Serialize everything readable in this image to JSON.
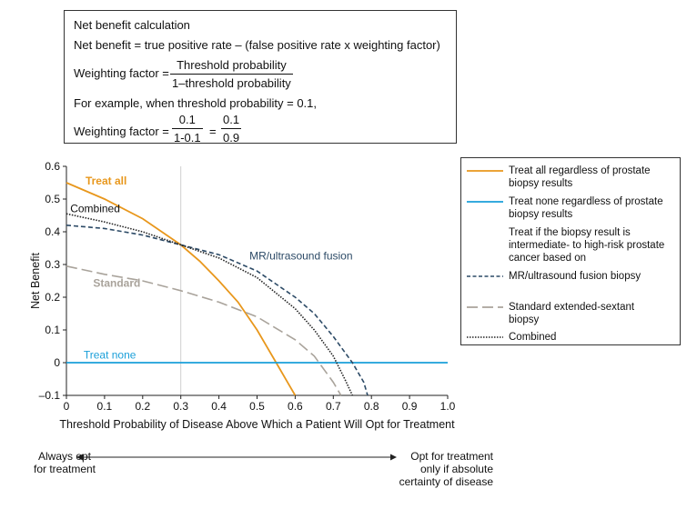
{
  "formula_box": {
    "line1": "Net benefit calculation",
    "line2": "Net benefit = true positive rate – (false positive rate x weighting factor)",
    "wf_label": "Weighting factor =",
    "wf_num": "Threshold probability",
    "wf_den": "1–threshold probability",
    "example": "For example, when threshold probability = 0.1,",
    "ex_label": "Weighting factor =",
    "ex_num1": "0.1",
    "ex_den1": "1-0.1",
    "ex_eq": "=",
    "ex_num2": "0.1",
    "ex_den2": "0.9"
  },
  "chart_data": {
    "type": "line",
    "xlabel": "Threshold Probability of Disease Above Which a Patient Will Opt for Treatment",
    "ylabel": "Net Benefit",
    "xlim": [
      0,
      1.0
    ],
    "ylim": [
      -0.1,
      0.6
    ],
    "x_ticks": [
      "0",
      "0.1",
      "0.2",
      "0.3",
      "0.4",
      "0.5",
      "0.6",
      "0.7",
      "0.8",
      "0.9",
      "1.0"
    ],
    "y_ticks": [
      "0.6",
      "0.5",
      "0.4",
      "0.3",
      "0.2",
      "0.1",
      "0",
      "–0.1"
    ],
    "grid": "vertical line at x = 0.3",
    "series": [
      {
        "name": "Treat all",
        "color": "#e8971c",
        "dash": "solid",
        "x": [
          0,
          0.1,
          0.2,
          0.3,
          0.35,
          0.4,
          0.45,
          0.5,
          0.55,
          0.58,
          0.6
        ],
        "y": [
          0.55,
          0.5,
          0.44,
          0.36,
          0.31,
          0.25,
          0.185,
          0.1,
          0.0,
          -0.06,
          -0.1
        ]
      },
      {
        "name": "Treat none",
        "color": "#1a9fd9",
        "dash": "solid",
        "x": [
          0,
          1.0
        ],
        "y": [
          0,
          0
        ]
      },
      {
        "name": "MR/ultrasound fusion",
        "color": "#2c4a66",
        "dash": "5,3",
        "x": [
          0,
          0.1,
          0.2,
          0.3,
          0.4,
          0.5,
          0.6,
          0.65,
          0.7,
          0.75,
          0.78,
          0.79
        ],
        "y": [
          0.42,
          0.41,
          0.39,
          0.36,
          0.33,
          0.28,
          0.2,
          0.15,
          0.08,
          0.0,
          -0.06,
          -0.1
        ]
      },
      {
        "name": "Standard",
        "color": "#a9a39b",
        "dash": "12,5",
        "x": [
          0,
          0.1,
          0.2,
          0.3,
          0.4,
          0.5,
          0.6,
          0.65,
          0.7,
          0.72
        ],
        "y": [
          0.295,
          0.27,
          0.25,
          0.22,
          0.185,
          0.14,
          0.07,
          0.02,
          -0.06,
          -0.1
        ]
      },
      {
        "name": "Combined",
        "color": "#222222",
        "dash": "1.5,1.5",
        "x": [
          0,
          0.1,
          0.2,
          0.3,
          0.4,
          0.5,
          0.6,
          0.65,
          0.7,
          0.73,
          0.75
        ],
        "y": [
          0.455,
          0.43,
          0.4,
          0.36,
          0.32,
          0.26,
          0.165,
          0.1,
          0.02,
          -0.05,
          -0.1
        ]
      }
    ],
    "annotations": [
      "Treat all",
      "Combined",
      "Standard",
      "MR/ultrasound fusion",
      "Treat none"
    ]
  },
  "legend": {
    "item1": "Treat all regardless of prostate biopsy results",
    "item2": "Treat none regardless of prostate biopsy results",
    "header": "Treat if the biopsy result is intermediate- to high-risk prostate cancer based on",
    "item3": "MR/ultrasound fusion biopsy",
    "item4": "Standard extended-sextant biopsy",
    "item5": "Combined"
  },
  "bottom": {
    "left": "Always opt for treatment",
    "right": "Opt for treatment only if absolute certainty of disease"
  }
}
